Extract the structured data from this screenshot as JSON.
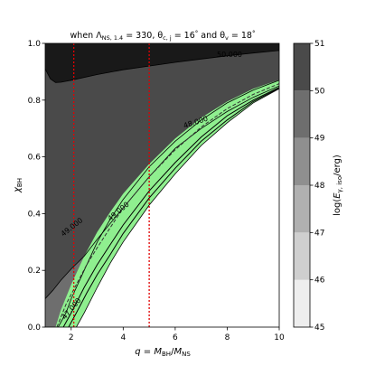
{
  "chart_data": {
    "type": "contour",
    "title": "when Λ_NS,1.4 = 330, θ_c,j = 16° and θ_v = 18°",
    "title_parts": {
      "prefix": "when Λ",
      "sub1": "NS, 1.4",
      "mid1": " = 330, θ",
      "sub2": "c, j",
      "mid2": " = 16",
      "deg": "°",
      "mid3": " and θ",
      "sub3": "v",
      "mid4": " = 18"
    },
    "xlabel": "q = M_BH/M_NS",
    "xlabel_parts": {
      "q": "q",
      "eq": " = ",
      "m1": "M",
      "s1": "BH",
      "slash": "/",
      "m2": "M",
      "s2": "NS"
    },
    "ylabel": "χ_BH",
    "ylabel_parts": {
      "chi": "χ",
      "sub": "BH"
    },
    "xlim": [
      1,
      10
    ],
    "ylim": [
      0,
      1
    ],
    "xticks": [
      2,
      4,
      6,
      8,
      10
    ],
    "yticks": [
      0.0,
      0.2,
      0.4,
      0.6,
      0.8,
      1.0
    ],
    "xtick_labels": [
      "2",
      "4",
      "6",
      "8",
      "10"
    ],
    "ytick_labels": [
      "0.0",
      "0.2",
      "0.4",
      "0.6",
      "0.8",
      "1.0"
    ],
    "colorbar": {
      "label": "log(E_γ,iso/erg)",
      "label_parts": {
        "pre": "log(",
        "e": "E",
        "sub": "γ, iso",
        "post": "/erg)"
      },
      "levels": [
        45,
        46,
        47,
        48,
        49,
        50,
        51
      ],
      "tick_labels": [
        "45",
        "46",
        "47",
        "48",
        "49",
        "50",
        "51"
      ],
      "colors": [
        "#eeeeee",
        "#cfcfcf",
        "#b0b0b0",
        "#8f8f8f",
        "#6e6e6e",
        "#4a4a4a",
        "#191919"
      ]
    },
    "contour_labels": [
      "49.000",
      "49.000",
      "50.000",
      "47.000",
      "48.000"
    ],
    "boundaries": {
      "band_50": {
        "x": [
          1,
          1.2,
          1.4,
          1.6,
          2,
          3,
          4,
          5,
          6,
          7,
          8,
          9,
          10
        ],
        "y": [
          0.91,
          0.875,
          0.862,
          0.863,
          0.87,
          0.89,
          0.907,
          0.92,
          0.933,
          0.945,
          0.956,
          0.966,
          0.975
        ]
      },
      "band_49": {
        "x": [
          1,
          1.3,
          1.6,
          2,
          2.5,
          3,
          3.5,
          4,
          5,
          6,
          7,
          8,
          9,
          10
        ],
        "y": [
          0.1,
          0.13,
          0.165,
          0.205,
          0.25,
          0.31,
          0.365,
          0.42,
          0.53,
          0.63,
          0.7,
          0.76,
          0.81,
          0.85
        ]
      },
      "band_48": {
        "x": [
          1.5,
          1.8,
          2,
          2.5,
          3,
          3.5,
          4,
          5,
          6,
          7,
          8,
          9,
          10
        ],
        "y": [
          0,
          0.05,
          0.1,
          0.2,
          0.3,
          0.38,
          0.45,
          0.565,
          0.655,
          0.73,
          0.79,
          0.835,
          0.87
        ]
      },
      "green_upper": {
        "x": [
          1.4,
          1.6,
          2,
          2.5,
          3,
          3.5,
          4,
          5,
          6,
          7,
          8,
          9,
          10
        ],
        "y": [
          0,
          0.06,
          0.15,
          0.25,
          0.335,
          0.405,
          0.47,
          0.575,
          0.665,
          0.738,
          0.795,
          0.84,
          0.872
        ]
      },
      "green_lower": {
        "x": [
          2.2,
          2.5,
          3,
          3.5,
          4,
          5,
          6,
          7,
          8,
          9,
          10
        ],
        "y": [
          0,
          0.05,
          0.14,
          0.225,
          0.3,
          0.43,
          0.54,
          0.64,
          0.72,
          0.79,
          0.84
        ]
      },
      "band_47": {
        "x": [
          2.2,
          2.5,
          3,
          3.5,
          4,
          5,
          6,
          7,
          8,
          9,
          10
        ],
        "y": [
          0,
          0.05,
          0.14,
          0.225,
          0.3,
          0.43,
          0.54,
          0.64,
          0.72,
          0.79,
          0.84
        ]
      }
    },
    "inner_lines": [
      {
        "style": "dashed",
        "x": [
          1.45,
          1.8,
          2.2,
          2.6,
          3,
          3.5,
          4,
          5,
          6,
          7,
          8,
          9,
          10
        ],
        "y": [
          0,
          0.08,
          0.15,
          0.22,
          0.28,
          0.35,
          0.42,
          0.53,
          0.625,
          0.705,
          0.77,
          0.82,
          0.858
        ]
      },
      {
        "style": "solid",
        "x": [
          1.7,
          2,
          2.5,
          3,
          3.5,
          4,
          5,
          6,
          7,
          8,
          9,
          10
        ],
        "y": [
          0,
          0.05,
          0.14,
          0.22,
          0.29,
          0.36,
          0.48,
          0.58,
          0.67,
          0.745,
          0.8,
          0.845
        ]
      },
      {
        "style": "solid",
        "x": [
          1.9,
          2.2,
          2.6,
          3,
          3.5,
          4,
          5,
          6,
          7,
          8,
          9,
          10
        ],
        "y": [
          0,
          0.05,
          0.12,
          0.185,
          0.255,
          0.33,
          0.455,
          0.56,
          0.655,
          0.73,
          0.795,
          0.842
        ]
      }
    ],
    "vlines": [
      2.1,
      5.0
    ],
    "vline_color": "#e00000",
    "green_color": "#8fef8f"
  }
}
